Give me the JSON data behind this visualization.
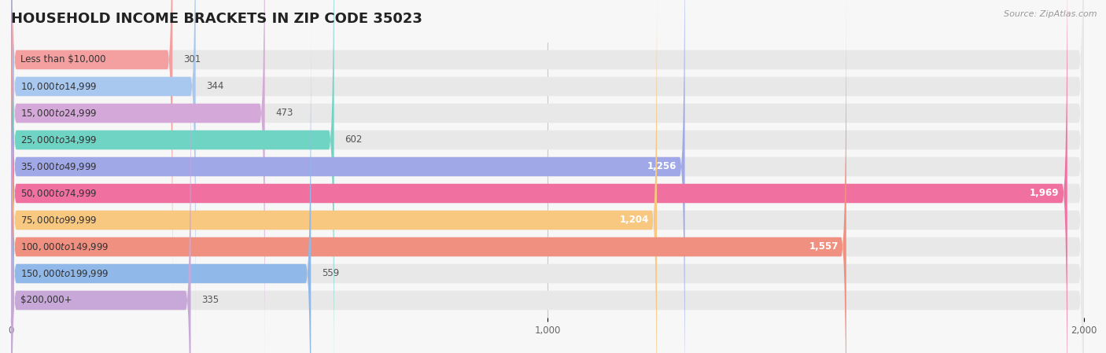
{
  "title": "HOUSEHOLD INCOME BRACKETS IN ZIP CODE 35023",
  "source": "Source: ZipAtlas.com",
  "categories": [
    "Less than $10,000",
    "$10,000 to $14,999",
    "$15,000 to $24,999",
    "$25,000 to $34,999",
    "$35,000 to $49,999",
    "$50,000 to $74,999",
    "$75,000 to $99,999",
    "$100,000 to $149,999",
    "$150,000 to $199,999",
    "$200,000+"
  ],
  "values": [
    301,
    344,
    473,
    602,
    1256,
    1969,
    1204,
    1557,
    559,
    335
  ],
  "bar_colors": [
    "#F4A0A0",
    "#A8C8F0",
    "#D4A8D8",
    "#70D4C4",
    "#A0A8E8",
    "#F070A0",
    "#F8C880",
    "#F09080",
    "#90B8E8",
    "#C8A8D8"
  ],
  "background_color": "#f7f7f7",
  "bar_bg_color": "#e8e8e8",
  "xlim": [
    0,
    2100
  ],
  "xlim_display": 2000,
  "xticks": [
    0,
    1000,
    2000
  ],
  "title_fontsize": 13,
  "label_fontsize": 8.5,
  "value_fontsize": 8.5,
  "value_threshold": 700
}
